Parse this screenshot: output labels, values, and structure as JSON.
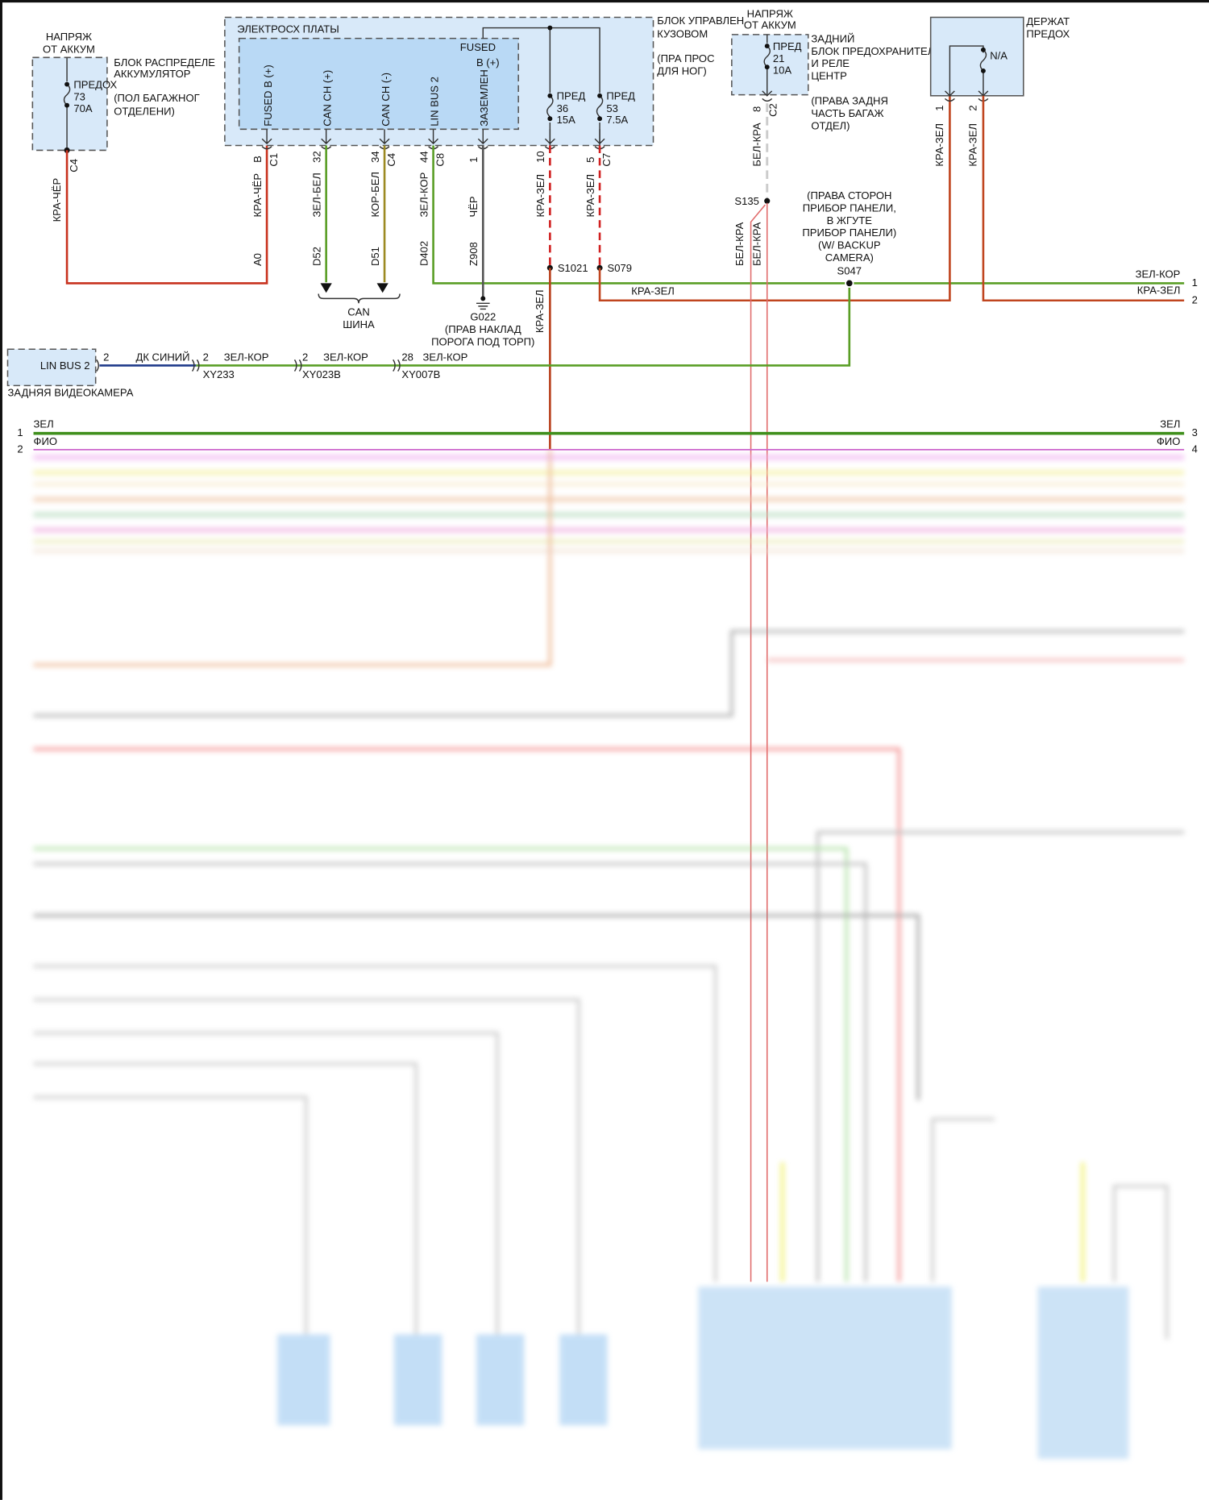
{
  "wire_colors": {
    "red": "#c8321e",
    "red_green": "#c0451f",
    "green": "#5a9e26",
    "olive": "#9c8a22",
    "gray": "#555555",
    "blue": "#1f3a8a",
    "pink_red": "#e06a6a",
    "magenta": "#cc66cc",
    "box_fill": "#d8e9f9",
    "inner_fill": "#b9d9f5"
  },
  "battery_block": {
    "supply1": "НАПРЯЖ",
    "supply2": "ОТ АККУМ",
    "name1": "БЛОК РАСПРЕДЕЛЕ",
    "name2": "АККУМУЛЯТОР",
    "loc1": "(ПОЛ БАГАЖНОГ",
    "loc2": "ОТДЕЛЕНИ)",
    "fuse_label": "ПРЕДОХ",
    "fuse_num": "73",
    "fuse_amp": "70A",
    "connector": "C4",
    "wire": "КРА-ЧЁР"
  },
  "bcm": {
    "inner_title": "ЭЛЕКТРОСХ ПЛАТЫ",
    "name1": "БЛОК УПРАВЛЕН",
    "name2": "КУЗОВОМ",
    "loc1": "(ПРА ПРОС",
    "loc2": "ДЛЯ НОГ)",
    "fused": "FUSED",
    "bplus": "B (+)",
    "pins": [
      {
        "name": "FUSED B (+)",
        "pin": "B",
        "conn": "C1",
        "wire": "КРА-ЧЁР",
        "circuit": "A0"
      },
      {
        "name": "CAN CH (+)",
        "pin": "32",
        "conn": "",
        "wire": "ЗЕЛ-БЕЛ",
        "circuit": "D52"
      },
      {
        "name": "CAN CH (-)",
        "pin": "34",
        "conn": "C4",
        "wire": "КОР-БЕЛ",
        "circuit": "D51"
      },
      {
        "name": "LIN BUS 2",
        "pin": "44",
        "conn": "C8",
        "wire": "ЗЕЛ-КОР",
        "circuit": "D402"
      },
      {
        "name": "ЗАЗЕМЛЕН",
        "pin": "1",
        "conn": "",
        "wire": "ЧЁР",
        "circuit": "Z908"
      },
      {
        "name": "",
        "pin": "10",
        "conn": "",
        "wire": "КРА-ЗЕЛ",
        "circuit": ""
      },
      {
        "name": "",
        "pin": "5",
        "conn": "C7",
        "wire": "КРА-ЗЕЛ",
        "circuit": ""
      }
    ],
    "fuse36": {
      "label": "ПРЕД",
      "num": "36",
      "amp": "15A"
    },
    "fuse53": {
      "label": "ПРЕД",
      "num": "53",
      "amp": "7.5A"
    }
  },
  "can": {
    "line1": "CAN",
    "line2": "ШИНА"
  },
  "ground": {
    "id": "G022",
    "loc1": "(ПРАВ НАКЛАД",
    "loc2": "ПОРОГА ПОД ТОРП)"
  },
  "splices": {
    "s1021": "S1021",
    "s079": "S079",
    "s135": "S135",
    "s047": "S047",
    "s1021_wire": "КРА-ЗЕЛ",
    "s079_wire": "КРА-ЗЕЛ"
  },
  "s047_loc": [
    "(ПРАВА СТОРОН",
    "ПРИБОР ПАНЕЛИ,",
    "В ЖГУТЕ",
    "ПРИБОР ПАНЕЛИ)",
    "(W/ BACKUP",
    "CAMERA)"
  ],
  "rear_fuse": {
    "supply1": "НАПРЯЖ",
    "supply2": "ОТ АККУМ",
    "fuse_label": "ПРЕД",
    "fuse_num": "21",
    "fuse_amp": "10A",
    "name": [
      "ЗАДНИЙ",
      "БЛОК ПРЕДОХРАНИТЕЛЕЙ",
      "И РЕЛЕ",
      "ЦЕНТР"
    ],
    "loc": [
      "(ПРАВА ЗАДНЯ",
      "ЧАСТЬ БАГАЖ",
      "ОТДЕЛ)"
    ],
    "pin": "8",
    "conn": "C2",
    "wire": "БЕЛ-КРА",
    "wire_a": "БЕЛ-КРА",
    "wire_b": "БЕЛ-КРА"
  },
  "fuse_holder": {
    "name1": "ДЕРЖАТ",
    "name2": "ПРЕДОХ",
    "fuse": "N/A",
    "pin1": "1",
    "pin2": "2",
    "wire1": "КРА-ЗЕЛ",
    "wire2": "КРА-ЗЕЛ"
  },
  "right_out": {
    "wire1": "ЗЕЛ-КОР",
    "wire2": "КРА-ЗЕЛ",
    "num1": "1",
    "num2": "2"
  },
  "camera": {
    "pin_name": "LIN BUS 2",
    "name": "ЗАДНЯЯ ВИДЕОКАМЕРА",
    "pin": "2",
    "wire": "ДК СИНИЙ",
    "inlines": [
      {
        "pin": "2",
        "wire": "ЗЕЛ-КОР",
        "conn": "XY233"
      },
      {
        "pin": "2",
        "wire": "ЗЕЛ-КОР",
        "conn": "XY023B"
      },
      {
        "pin": "28",
        "wire": "ЗЕЛ-КОР",
        "conn": "XY007B"
      }
    ]
  },
  "bus": {
    "left_num1": "1",
    "left_num2": "2",
    "right_num1": "3",
    "right_num2": "4",
    "wire1": "ЗЕЛ",
    "wire2": "ФИО"
  }
}
